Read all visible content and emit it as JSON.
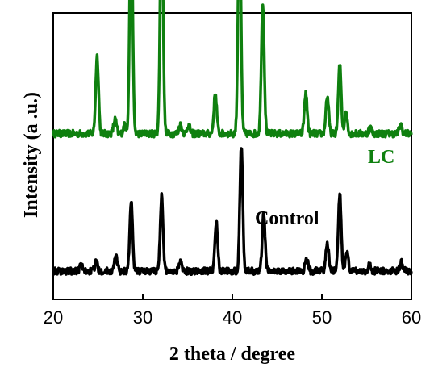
{
  "chart_data": {
    "type": "line",
    "title": "",
    "xlabel": "2 theta / degree",
    "ylabel": "Intensity (a .u.)",
    "xlim": [
      20,
      60
    ],
    "x_ticks": [
      20,
      30,
      40,
      50,
      60
    ],
    "y_ticks_shown": false,
    "grid": false,
    "legend": "none",
    "series": [
      {
        "name": "LC",
        "color": "#0f800f",
        "baseline": 0.48,
        "noise": 0.012,
        "peaks": [
          {
            "x": 24.9,
            "h": 0.27
          },
          {
            "x": 26.9,
            "h": 0.05
          },
          {
            "x": 28.0,
            "h": 0.03
          },
          {
            "x": 28.7,
            "h": 0.82
          },
          {
            "x": 32.1,
            "h": 0.84
          },
          {
            "x": 34.2,
            "h": 0.03
          },
          {
            "x": 35.1,
            "h": 0.03
          },
          {
            "x": 38.1,
            "h": 0.14
          },
          {
            "x": 40.8,
            "h": 0.78
          },
          {
            "x": 43.4,
            "h": 0.46
          },
          {
            "x": 48.2,
            "h": 0.14
          },
          {
            "x": 50.6,
            "h": 0.13
          },
          {
            "x": 52.0,
            "h": 0.24
          },
          {
            "x": 52.7,
            "h": 0.07
          },
          {
            "x": 55.4,
            "h": 0.02
          },
          {
            "x": 58.8,
            "h": 0.03
          }
        ]
      },
      {
        "name": "Control",
        "color": "#000000",
        "baseline": 0.0,
        "noise": 0.012,
        "peaks": [
          {
            "x": 23.1,
            "h": 0.02
          },
          {
            "x": 24.8,
            "h": 0.03
          },
          {
            "x": 27.0,
            "h": 0.05
          },
          {
            "x": 28.7,
            "h": 0.24
          },
          {
            "x": 32.1,
            "h": 0.26
          },
          {
            "x": 34.2,
            "h": 0.04
          },
          {
            "x": 38.2,
            "h": 0.17
          },
          {
            "x": 41.0,
            "h": 0.44
          },
          {
            "x": 43.5,
            "h": 0.2
          },
          {
            "x": 48.3,
            "h": 0.05
          },
          {
            "x": 50.6,
            "h": 0.1
          },
          {
            "x": 52.0,
            "h": 0.27
          },
          {
            "x": 52.8,
            "h": 0.06
          },
          {
            "x": 55.3,
            "h": 0.02
          },
          {
            "x": 58.9,
            "h": 0.03
          }
        ]
      }
    ]
  }
}
